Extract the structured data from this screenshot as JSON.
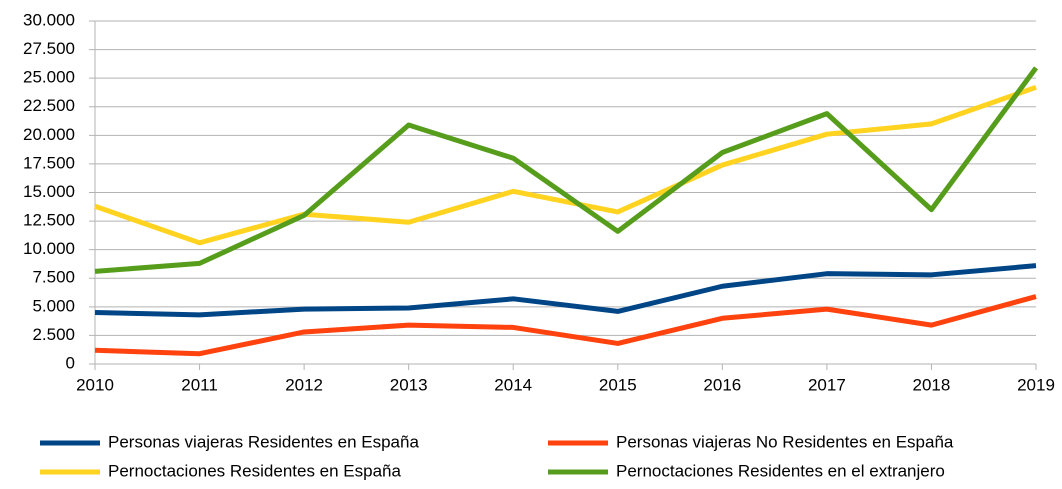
{
  "chart_data": {
    "type": "line",
    "x": [
      2010,
      2011,
      2012,
      2013,
      2014,
      2015,
      2016,
      2017,
      2018,
      2019
    ],
    "xlim": [
      2010,
      2019
    ],
    "xticks": [
      2010,
      2011,
      2012,
      2013,
      2014,
      2015,
      2016,
      2017,
      2018,
      2019
    ],
    "ylim": [
      0,
      30000
    ],
    "yticks": [
      0,
      {
        "value": 2500,
        "label": "2.500"
      },
      {
        "value": 5000,
        "label": "5.000"
      },
      {
        "value": 7500,
        "label": "7.500"
      },
      {
        "value": 10000,
        "label": "10.000"
      },
      {
        "value": 12500,
        "label": "12.500"
      },
      {
        "value": 15000,
        "label": "15.000"
      },
      {
        "value": 17500,
        "label": "17.500"
      },
      {
        "value": 20000,
        "label": "20.000"
      },
      {
        "value": 22500,
        "label": "22.500"
      },
      {
        "value": 25000,
        "label": "25.000"
      },
      {
        "value": 27500,
        "label": "27.500"
      },
      {
        "value": 30000,
        "label": "30.000"
      }
    ],
    "grid": true,
    "legend": "bottom",
    "series": [
      {
        "name": "Personas viajeras Residentes en España",
        "color": "#004586",
        "values": [
          4500,
          4300,
          4800,
          4900,
          5700,
          4600,
          6800,
          7900,
          7800,
          8600
        ]
      },
      {
        "name": "Personas viajeras No Residentes en España",
        "color": "#ff420e",
        "values": [
          1200,
          900,
          2800,
          3400,
          3200,
          1800,
          4000,
          4800,
          3400,
          5900
        ]
      },
      {
        "name": "Pernoctaciones Residentes en España",
        "color": "#ffd320",
        "values": [
          13800,
          10600,
          13100,
          12400,
          15100,
          13300,
          17400,
          20100,
          21000,
          24200
        ]
      },
      {
        "name": "Pernoctaciones Residentes en el extranjero",
        "color": "#579d1c",
        "values": [
          8100,
          8800,
          13000,
          20900,
          18000,
          11600,
          18500,
          21900,
          13500,
          25900
        ]
      }
    ]
  }
}
